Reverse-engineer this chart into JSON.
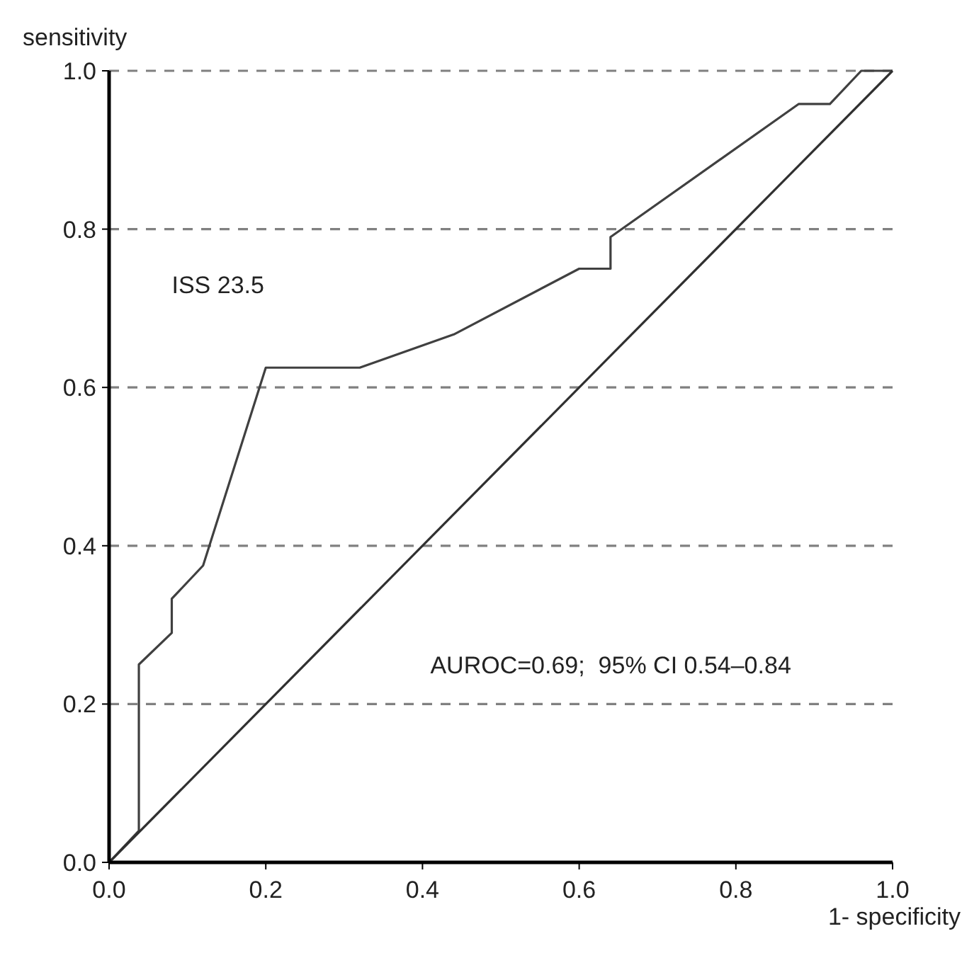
{
  "chart_data": {
    "type": "line",
    "xlabel": "1- specificity",
    "ylabel": "sensitivity",
    "xlim": [
      0,
      1
    ],
    "ylim": [
      0,
      1
    ],
    "xticks": [
      {
        "value": 0,
        "label": "0.0"
      },
      {
        "value": 0.2,
        "label": "0.2"
      },
      {
        "value": 0.4,
        "label": "0.4"
      },
      {
        "value": 0.6,
        "label": "0.6"
      },
      {
        "value": 0.8,
        "label": "0.8"
      },
      {
        "value": 1,
        "label": "1.0"
      }
    ],
    "yticks": [
      {
        "value": 0,
        "label": "0.0"
      },
      {
        "value": 0.2,
        "label": "0.2"
      },
      {
        "value": 0.4,
        "label": "0.4"
      },
      {
        "value": 0.6,
        "label": "0.6"
      },
      {
        "value": 0.8,
        "label": "0.8"
      },
      {
        "value": 1,
        "label": "1.0"
      }
    ],
    "grid": "y",
    "marker": "none",
    "line_style": "solid",
    "series": [
      {
        "color": "#404040",
        "x": [
          0,
          0.038,
          0.038,
          0.08,
          0.08,
          0.12,
          0.2,
          0.32,
          0.44,
          0.6,
          0.64,
          0.64,
          0.88,
          0.92,
          0.96,
          1
        ],
        "values": [
          0,
          0.04,
          0.25,
          0.29,
          0.333,
          0.375,
          0.625,
          0.625,
          0.667,
          0.75,
          0.75,
          0.79,
          0.958,
          0.958,
          1,
          1
        ]
      },
      {
        "color": "#303030",
        "x": [
          0,
          1
        ],
        "values": [
          0,
          1
        ]
      }
    ],
    "annotations": [
      "ISS 23.5",
      "AUROC=0.69;  95% CI 0.54–0.84"
    ]
  }
}
